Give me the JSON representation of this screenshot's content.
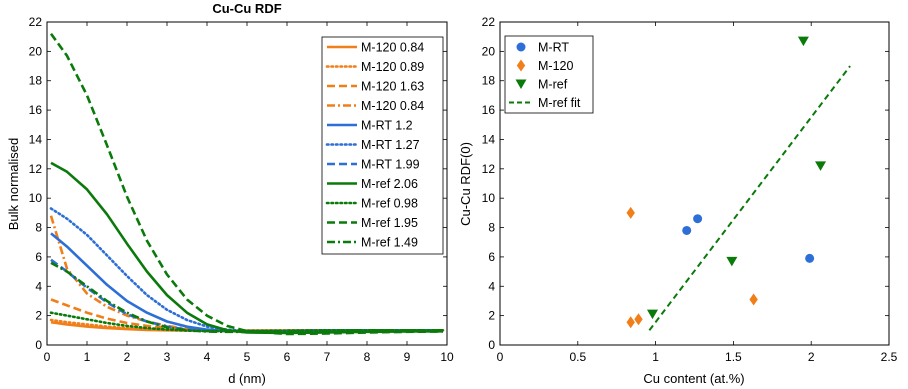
{
  "chart_data": [
    {
      "type": "line",
      "title": "Cu-Cu RDF",
      "xlabel": "d (nm)",
      "ylabel": "Bulk normalised",
      "xlim": [
        0,
        10
      ],
      "ylim": [
        0,
        22
      ],
      "xticks": [
        0,
        1,
        2,
        3,
        4,
        5,
        6,
        7,
        8,
        9,
        10
      ],
      "yticks": [
        0,
        2,
        4,
        6,
        8,
        10,
        12,
        14,
        16,
        18,
        20,
        22
      ],
      "grid": false,
      "legend_position": "top-right",
      "series": [
        {
          "name": "M-120 0.84",
          "color": "#f07f1a",
          "dash": "solid",
          "x": [
            0.1,
            0.5,
            1,
            1.5,
            2,
            2.5,
            3,
            3.5,
            4,
            4.5,
            5,
            6,
            7,
            8,
            9,
            9.9
          ],
          "y": [
            1.55,
            1.4,
            1.25,
            1.15,
            1.08,
            1.03,
            1.0,
            0.98,
            0.97,
            0.97,
            0.98,
            0.99,
            1.0,
            1.0,
            1.0,
            1.0
          ]
        },
        {
          "name": "M-120 0.89",
          "color": "#f07f1a",
          "dash": "dot",
          "x": [
            0.1,
            0.5,
            1,
            1.5,
            2,
            2.5,
            3,
            3.5,
            4,
            4.5,
            5,
            6,
            7,
            8,
            9,
            9.9
          ],
          "y": [
            1.7,
            1.55,
            1.4,
            1.25,
            1.15,
            1.08,
            1.03,
            1.0,
            0.98,
            0.97,
            0.98,
            0.99,
            1.0,
            1.0,
            1.0,
            1.0
          ]
        },
        {
          "name": "M-120 1.63",
          "color": "#f07f1a",
          "dash": "dash",
          "x": [
            0.1,
            0.5,
            1,
            1.5,
            2,
            2.5,
            3,
            3.5,
            4,
            4.5,
            5,
            6,
            7,
            8,
            9,
            9.9
          ],
          "y": [
            3.1,
            2.7,
            2.2,
            1.8,
            1.5,
            1.3,
            1.15,
            1.05,
            1.0,
            0.97,
            0.97,
            0.98,
            1.0,
            1.0,
            1.0,
            1.0
          ]
        },
        {
          "name": "M-120 0.84",
          "color": "#f07f1a",
          "dash": "dashdot",
          "x": [
            0.1,
            0.5,
            1,
            1.5,
            2,
            2.5,
            3,
            3.5,
            4,
            4.5,
            5,
            6,
            7,
            8,
            9,
            9.9
          ],
          "y": [
            8.8,
            5.2,
            3.5,
            2.6,
            2.0,
            1.6,
            1.3,
            1.1,
            1.0,
            0.95,
            0.95,
            0.97,
            1.0,
            1.0,
            1.0,
            1.0
          ]
        },
        {
          "name": "M-RT 1.2",
          "color": "#2d6fd6",
          "dash": "solid",
          "x": [
            0.1,
            0.5,
            1,
            1.5,
            2,
            2.5,
            3,
            3.5,
            4,
            4.5,
            5,
            6,
            7,
            8,
            9,
            9.9
          ],
          "y": [
            7.6,
            6.7,
            5.4,
            4.1,
            3.0,
            2.2,
            1.6,
            1.25,
            1.05,
            0.95,
            0.92,
            0.95,
            0.98,
            1.0,
            1.0,
            1.0
          ]
        },
        {
          "name": "M-RT 1.27",
          "color": "#2d6fd6",
          "dash": "dot",
          "x": [
            0.1,
            0.5,
            1,
            1.5,
            2,
            2.5,
            3,
            3.5,
            4,
            4.5,
            5,
            6,
            7,
            8,
            9,
            9.9
          ],
          "y": [
            9.3,
            8.6,
            7.5,
            6.1,
            4.7,
            3.4,
            2.4,
            1.7,
            1.25,
            1.05,
            0.95,
            0.92,
            0.95,
            0.98,
            1.0,
            1.0
          ]
        },
        {
          "name": "M-RT 1.99",
          "color": "#2d6fd6",
          "dash": "dash",
          "x": [
            0.1,
            0.5,
            1,
            1.5,
            2,
            2.5,
            3,
            3.5,
            4,
            4.5,
            5,
            6,
            7,
            8,
            9,
            9.9
          ],
          "y": [
            5.8,
            5.0,
            3.9,
            2.9,
            2.1,
            1.6,
            1.25,
            1.05,
            0.97,
            0.95,
            0.95,
            0.97,
            1.0,
            1.0,
            1.0,
            1.0
          ]
        },
        {
          "name": "M-ref 2.06",
          "color": "#0a7a0a",
          "dash": "solid",
          "x": [
            0.1,
            0.5,
            1,
            1.5,
            2,
            2.5,
            3,
            3.5,
            4,
            4.5,
            5,
            6,
            7,
            8,
            9,
            9.9
          ],
          "y": [
            12.4,
            11.8,
            10.6,
            8.9,
            6.9,
            5.0,
            3.4,
            2.2,
            1.4,
            1.0,
            0.85,
            0.82,
            0.85,
            0.9,
            0.92,
            0.93
          ]
        },
        {
          "name": "M-ref 0.98",
          "color": "#0a7a0a",
          "dash": "dot",
          "x": [
            0.1,
            0.5,
            1,
            1.5,
            2,
            2.5,
            3,
            3.5,
            4,
            4.5,
            5,
            6,
            7,
            8,
            9,
            9.9
          ],
          "y": [
            2.2,
            2.0,
            1.75,
            1.5,
            1.3,
            1.15,
            1.05,
            0.98,
            0.95,
            0.95,
            0.96,
            0.98,
            1.0,
            1.0,
            1.0,
            1.0
          ]
        },
        {
          "name": "M-ref 1.95",
          "color": "#0a7a0a",
          "dash": "dash",
          "x": [
            0.1,
            0.5,
            1,
            1.5,
            2,
            2.5,
            3,
            3.5,
            4,
            4.5,
            5,
            6,
            7,
            8,
            9,
            9.9
          ],
          "y": [
            21.2,
            19.7,
            17.0,
            13.6,
            10.1,
            7.1,
            4.8,
            3.1,
            2.0,
            1.3,
            0.95,
            0.75,
            0.78,
            0.85,
            0.9,
            0.92
          ]
        },
        {
          "name": "M-ref 1.49",
          "color": "#0a7a0a",
          "dash": "dashdot",
          "x": [
            0.1,
            0.5,
            1,
            1.5,
            2,
            2.5,
            3,
            3.5,
            4,
            4.5,
            5,
            6,
            7,
            8,
            9,
            9.9
          ],
          "y": [
            5.6,
            5.0,
            4.0,
            3.0,
            2.2,
            1.6,
            1.2,
            1.0,
            0.92,
            0.9,
            0.9,
            0.93,
            0.97,
            1.0,
            1.0,
            1.0
          ]
        }
      ]
    },
    {
      "type": "scatter",
      "title": "",
      "xlabel": "Cu content (at.%)",
      "ylabel": "Cu-Cu RDF(0)",
      "xlim": [
        0,
        2.5
      ],
      "ylim": [
        0,
        22
      ],
      "xticks": [
        0,
        0.5,
        1,
        1.5,
        2,
        2.5
      ],
      "xtick_labels": [
        "0",
        "0.5",
        "1",
        "1.5",
        "2",
        "2.5"
      ],
      "yticks": [
        0,
        2,
        4,
        6,
        8,
        10,
        12,
        14,
        16,
        18,
        20,
        22
      ],
      "grid": false,
      "legend_position": "top-left",
      "series": [
        {
          "name": "M-RT",
          "color": "#2d6fd6",
          "marker": "circle",
          "x": [
            1.2,
            1.27,
            1.99
          ],
          "y": [
            7.8,
            8.6,
            5.9
          ]
        },
        {
          "name": "M-120",
          "color": "#f07f1a",
          "marker": "diamond",
          "x": [
            0.84,
            0.84,
            0.89,
            1.63
          ],
          "y": [
            9.0,
            1.55,
            1.75,
            3.1
          ]
        },
        {
          "name": "M-ref",
          "color": "#0a7a0a",
          "marker": "triangle-down",
          "x": [
            0.98,
            1.49,
            1.95,
            2.06
          ],
          "y": [
            2.1,
            5.7,
            20.7,
            12.2
          ]
        },
        {
          "name": "M-ref fit",
          "color": "#0a7a0a",
          "marker": "line-dashed",
          "x": [
            0.96,
            2.25
          ],
          "y": [
            1.0,
            19.0
          ]
        }
      ]
    }
  ]
}
